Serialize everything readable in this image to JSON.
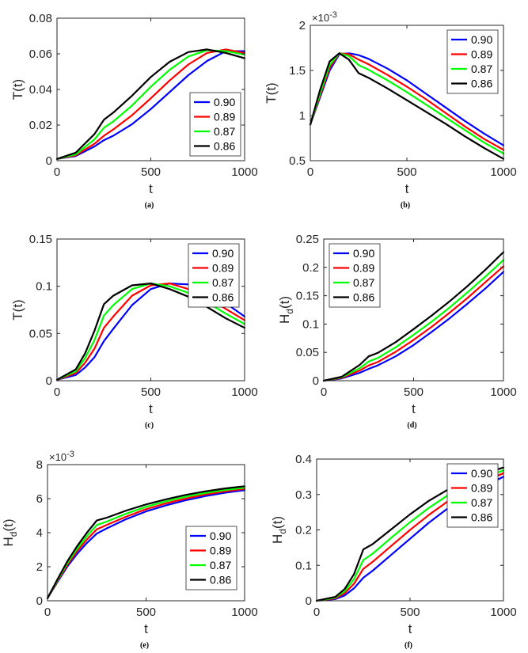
{
  "chart_data": [
    {
      "type": "line",
      "caption": "(a)",
      "xlabel": "t",
      "ylabel": "T(t)",
      "ylabel_sub": "",
      "exponent": "",
      "xlim": [
        0,
        1000
      ],
      "ylim": [
        0,
        0.08
      ],
      "xticks": [
        0,
        500,
        1000
      ],
      "xtick_labels": [
        "0",
        "500",
        "1000"
      ],
      "yticks": [
        0,
        0.02,
        0.04,
        0.06,
        0.08
      ],
      "ytick_labels": [
        "0",
        "0.02",
        "0.04",
        "0.06",
        "0.08"
      ],
      "legend": "lower-right",
      "x": [
        0,
        100,
        200,
        250,
        300,
        400,
        500,
        600,
        700,
        800,
        900,
        1000
      ],
      "series": [
        {
          "name": "0.90",
          "color": "#0000ff",
          "values": [
            0.001,
            0.0026,
            0.008,
            0.0115,
            0.014,
            0.0205,
            0.029,
            0.0385,
            0.048,
            0.056,
            0.0615,
            0.0615
          ]
        },
        {
          "name": "0.89",
          "color": "#ff0000",
          "values": [
            0.001,
            0.003,
            0.0095,
            0.014,
            0.0175,
            0.0255,
            0.035,
            0.045,
            0.054,
            0.0605,
            0.0625,
            0.0605
          ]
        },
        {
          "name": "0.87",
          "color": "#00ff00",
          "values": [
            0.001,
            0.0035,
            0.012,
            0.0185,
            0.022,
            0.031,
            0.0415,
            0.051,
            0.0585,
            0.062,
            0.0615,
            0.0595
          ]
        },
        {
          "name": "0.86",
          "color": "#000000",
          "values": [
            0.001,
            0.0045,
            0.015,
            0.023,
            0.027,
            0.0365,
            0.047,
            0.0555,
            0.061,
            0.0625,
            0.0605,
            0.0575
          ]
        }
      ]
    },
    {
      "type": "line",
      "caption": "(b)",
      "xlabel": "t",
      "ylabel": "T(t)",
      "ylabel_sub": "",
      "exponent": "×10",
      "exponent_power": "-3",
      "xlim": [
        0,
        1000
      ],
      "ylim": [
        0.5,
        2
      ],
      "xticks": [
        0,
        500,
        1000
      ],
      "xtick_labels": [
        "0",
        "500",
        "1000"
      ],
      "yticks": [
        0.5,
        1,
        1.5,
        2
      ],
      "ytick_labels": [
        "0.5",
        "1",
        "1.5",
        "2"
      ],
      "legend": "top-right",
      "x": [
        0,
        50,
        100,
        150,
        200,
        250,
        300,
        400,
        500,
        600,
        700,
        800,
        900,
        1000
      ],
      "series": [
        {
          "name": "0.90",
          "color": "#0000ff",
          "values": [
            0.9,
            1.2,
            1.5,
            1.68,
            1.69,
            1.67,
            1.63,
            1.52,
            1.39,
            1.24,
            1.09,
            0.94,
            0.8,
            0.67
          ]
        },
        {
          "name": "0.89",
          "color": "#ff0000",
          "values": [
            0.9,
            1.22,
            1.53,
            1.69,
            1.68,
            1.62,
            1.57,
            1.45,
            1.32,
            1.18,
            1.03,
            0.88,
            0.74,
            0.62
          ]
        },
        {
          "name": "0.87",
          "color": "#00ff00",
          "values": [
            0.9,
            1.24,
            1.56,
            1.69,
            1.66,
            1.56,
            1.51,
            1.39,
            1.26,
            1.12,
            0.98,
            0.84,
            0.7,
            0.58
          ]
        },
        {
          "name": "0.86",
          "color": "#000000",
          "values": [
            0.9,
            1.28,
            1.6,
            1.69,
            1.62,
            1.47,
            1.42,
            1.3,
            1.17,
            1.04,
            0.91,
            0.77,
            0.64,
            0.52
          ]
        }
      ]
    },
    {
      "type": "line",
      "caption": "(c)",
      "xlabel": "t",
      "ylabel": "T(t)",
      "ylabel_sub": "",
      "exponent": "",
      "xlim": [
        0,
        1000
      ],
      "ylim": [
        0,
        0.15
      ],
      "xticks": [
        0,
        500,
        1000
      ],
      "xtick_labels": [
        "0",
        "500",
        "1000"
      ],
      "yticks": [
        0,
        0.05,
        0.1,
        0.15
      ],
      "ytick_labels": [
        "0",
        "0.05",
        "0.1",
        "0.15"
      ],
      "legend": "top-right",
      "x": [
        0,
        100,
        150,
        200,
        250,
        300,
        400,
        500,
        600,
        700,
        800,
        900,
        1000
      ],
      "series": [
        {
          "name": "0.90",
          "color": "#0000ff",
          "values": [
            0.001,
            0.006,
            0.014,
            0.025,
            0.042,
            0.055,
            0.08,
            0.097,
            0.103,
            0.102,
            0.094,
            0.082,
            0.068
          ]
        },
        {
          "name": "0.89",
          "color": "#ff0000",
          "values": [
            0.001,
            0.008,
            0.019,
            0.034,
            0.056,
            0.068,
            0.09,
            0.101,
            0.103,
            0.097,
            0.088,
            0.076,
            0.064
          ]
        },
        {
          "name": "0.87",
          "color": "#00ff00",
          "values": [
            0.001,
            0.01,
            0.024,
            0.043,
            0.069,
            0.08,
            0.097,
            0.103,
            0.1,
            0.093,
            0.083,
            0.071,
            0.06
          ]
        },
        {
          "name": "0.86",
          "color": "#000000",
          "values": [
            0.001,
            0.012,
            0.029,
            0.053,
            0.081,
            0.09,
            0.101,
            0.103,
            0.097,
            0.089,
            0.078,
            0.066,
            0.056
          ]
        }
      ]
    },
    {
      "type": "line",
      "caption": "(d)",
      "xlabel": "t",
      "ylabel": "H",
      "ylabel_sub": "d",
      "ylabel_suffix": "(t)",
      "exponent": "",
      "xlim": [
        0,
        1000
      ],
      "ylim": [
        0,
        0.25
      ],
      "xticks": [
        0,
        500,
        1000
      ],
      "xtick_labels": [
        "0",
        "500",
        "1000"
      ],
      "yticks": [
        0,
        0.05,
        0.1,
        0.15,
        0.2,
        0.25
      ],
      "ytick_labels": [
        "0",
        "0.05",
        "0.1",
        "0.15",
        "0.2",
        "0.25"
      ],
      "legend": "top-left",
      "x": [
        0,
        100,
        200,
        250,
        300,
        400,
        500,
        600,
        700,
        800,
        900,
        1000
      ],
      "series": [
        {
          "name": "0.90",
          "color": "#0000ff",
          "values": [
            0,
            0.004,
            0.014,
            0.021,
            0.027,
            0.043,
            0.063,
            0.086,
            0.11,
            0.136,
            0.163,
            0.192
          ]
        },
        {
          "name": "0.89",
          "color": "#ff0000",
          "values": [
            0,
            0.005,
            0.018,
            0.027,
            0.033,
            0.051,
            0.072,
            0.095,
            0.12,
            0.146,
            0.174,
            0.202
          ]
        },
        {
          "name": "0.87",
          "color": "#00ff00",
          "values": [
            0,
            0.006,
            0.022,
            0.034,
            0.04,
            0.059,
            0.081,
            0.104,
            0.129,
            0.156,
            0.184,
            0.213
          ]
        },
        {
          "name": "0.86",
          "color": "#000000",
          "values": [
            0,
            0.007,
            0.028,
            0.043,
            0.049,
            0.068,
            0.091,
            0.115,
            0.14,
            0.167,
            0.196,
            0.227
          ]
        }
      ]
    },
    {
      "type": "line",
      "caption": "(e)",
      "xlabel": "t",
      "ylabel": "H",
      "ylabel_sub": "d",
      "ylabel_suffix": "(t)",
      "exponent": "×10",
      "exponent_power": "-3",
      "xlim": [
        0,
        1000
      ],
      "ylim": [
        0,
        8
      ],
      "xticks": [
        0,
        500,
        1000
      ],
      "xtick_labels": [
        "0",
        "500",
        "1000"
      ],
      "yticks": [
        0,
        2,
        4,
        6,
        8
      ],
      "ytick_labels": [
        "0",
        "2",
        "4",
        "6",
        "8"
      ],
      "legend": "bottom-right",
      "x": [
        0,
        50,
        100,
        150,
        200,
        250,
        300,
        400,
        500,
        600,
        700,
        800,
        900,
        1000
      ],
      "series": [
        {
          "name": "0.90",
          "color": "#0000ff",
          "values": [
            0.15,
            1.1,
            2.0,
            2.75,
            3.4,
            3.95,
            4.25,
            4.8,
            5.25,
            5.6,
            5.9,
            6.15,
            6.35,
            6.5
          ]
        },
        {
          "name": "0.89",
          "color": "#ff0000",
          "values": [
            0.15,
            1.15,
            2.1,
            2.9,
            3.6,
            4.2,
            4.45,
            4.95,
            5.38,
            5.72,
            6.0,
            6.24,
            6.43,
            6.57
          ]
        },
        {
          "name": "0.87",
          "color": "#00ff00",
          "values": [
            0.15,
            1.2,
            2.2,
            3.05,
            3.8,
            4.45,
            4.65,
            5.12,
            5.52,
            5.84,
            6.11,
            6.33,
            6.51,
            6.64
          ]
        },
        {
          "name": "0.86",
          "color": "#000000",
          "values": [
            0.15,
            1.25,
            2.3,
            3.2,
            4.0,
            4.72,
            4.88,
            5.3,
            5.66,
            5.96,
            6.22,
            6.43,
            6.6,
            6.73
          ]
        }
      ]
    },
    {
      "type": "line",
      "caption": "(f)",
      "xlabel": "t",
      "ylabel": "H",
      "ylabel_sub": "d",
      "ylabel_suffix": "(t)",
      "exponent": "",
      "xlim": [
        0,
        1000
      ],
      "ylim": [
        0,
        0.4
      ],
      "xticks": [
        0,
        500,
        1000
      ],
      "xtick_labels": [
        "0",
        "500",
        "1000"
      ],
      "yticks": [
        0,
        0.1,
        0.2,
        0.3,
        0.4
      ],
      "ytick_labels": [
        "0",
        "0.1",
        "0.2",
        "0.3",
        "0.4"
      ],
      "legend": "top-right",
      "x": [
        0,
        100,
        150,
        200,
        250,
        300,
        400,
        500,
        600,
        700,
        800,
        900,
        1000
      ],
      "series": [
        {
          "name": "0.90",
          "color": "#0000ff",
          "values": [
            0,
            0.005,
            0.015,
            0.035,
            0.065,
            0.085,
            0.13,
            0.175,
            0.22,
            0.26,
            0.295,
            0.325,
            0.35
          ]
        },
        {
          "name": "0.89",
          "color": "#ff0000",
          "values": [
            0,
            0.007,
            0.021,
            0.048,
            0.09,
            0.11,
            0.155,
            0.2,
            0.242,
            0.28,
            0.312,
            0.338,
            0.36
          ]
        },
        {
          "name": "0.87",
          "color": "#00ff00",
          "values": [
            0,
            0.009,
            0.027,
            0.061,
            0.115,
            0.133,
            0.178,
            0.222,
            0.262,
            0.297,
            0.326,
            0.349,
            0.368
          ]
        },
        {
          "name": "0.86",
          "color": "#000000",
          "values": [
            0,
            0.011,
            0.033,
            0.075,
            0.145,
            0.16,
            0.202,
            0.244,
            0.282,
            0.313,
            0.339,
            0.36,
            0.376
          ]
        }
      ]
    }
  ]
}
